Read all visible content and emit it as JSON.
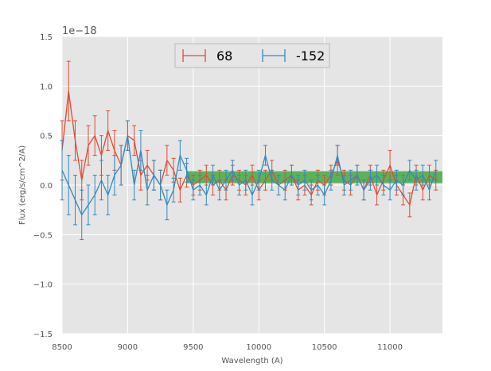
{
  "chart_data": {
    "type": "line",
    "xlabel": "Wavelength (A)",
    "ylabel": "Flux (erg/s/cm^2/A)",
    "offset_label": "1e−18",
    "xlim": [
      8500,
      11400
    ],
    "ylim": [
      -1.5,
      1.5
    ],
    "xticks": [
      8500,
      9000,
      9500,
      10000,
      10500,
      11000
    ],
    "xtick_labels": [
      "8500",
      "9000",
      "9500",
      "10000",
      "10500",
      "11000"
    ],
    "yticks": [
      -1.5,
      -1.0,
      -0.5,
      0.0,
      0.5,
      1.0,
      1.5
    ],
    "ytick_labels": [
      "−1.5",
      "−1.0",
      "−0.5",
      "0.0",
      "0.5",
      "1.0",
      "1.5"
    ],
    "grid": true,
    "background": "#e5e5e5",
    "legend_position": "top-center",
    "band": {
      "x": [
        9450,
        11400
      ],
      "y_low": 0.02,
      "y_high": 0.14,
      "color": "#2ca02c"
    },
    "series": [
      {
        "name": "68",
        "color": "#e24a33",
        "x": [
          8500,
          8550,
          8600,
          8650,
          8700,
          8750,
          8800,
          8850,
          8900,
          8950,
          9000,
          9050,
          9100,
          9150,
          9200,
          9250,
          9300,
          9350,
          9400,
          9450,
          9500,
          9550,
          9600,
          9650,
          9700,
          9750,
          9800,
          9850,
          9900,
          9950,
          10000,
          10050,
          10100,
          10150,
          10200,
          10250,
          10300,
          10350,
          10400,
          10450,
          10500,
          10550,
          10600,
          10650,
          10700,
          10750,
          10800,
          10850,
          10900,
          10950,
          11000,
          11050,
          11100,
          11150,
          11200,
          11250,
          11300,
          11350
        ],
        "y": [
          0.35,
          0.95,
          0.45,
          0.05,
          0.4,
          0.5,
          0.3,
          0.55,
          0.35,
          0.2,
          0.5,
          0.45,
          0.1,
          0.2,
          0.1,
          0.0,
          0.25,
          0.15,
          -0.05,
          0.1,
          0.0,
          0.05,
          0.1,
          0.0,
          0.05,
          -0.05,
          0.1,
          0.05,
          0.0,
          0.1,
          -0.05,
          0.05,
          0.15,
          0.0,
          0.05,
          0.1,
          -0.05,
          0.0,
          -0.1,
          0.05,
          0.0,
          0.1,
          0.25,
          0.05,
          0.0,
          0.1,
          -0.05,
          0.1,
          -0.1,
          0.05,
          0.2,
          0.0,
          -0.1,
          -0.2,
          0.1,
          -0.05,
          0.1,
          0.05
        ],
        "err": [
          0.3,
          0.3,
          0.2,
          0.2,
          0.2,
          0.2,
          0.2,
          0.2,
          0.2,
          0.2,
          0.15,
          0.15,
          0.15,
          0.15,
          0.15,
          0.15,
          0.15,
          0.12,
          0.12,
          0.12,
          0.1,
          0.1,
          0.1,
          0.1,
          0.1,
          0.1,
          0.1,
          0.1,
          0.1,
          0.1,
          0.1,
          0.1,
          0.1,
          0.1,
          0.1,
          0.1,
          0.1,
          0.1,
          0.1,
          0.1,
          0.1,
          0.1,
          0.15,
          0.1,
          0.1,
          0.1,
          0.1,
          0.1,
          0.1,
          0.1,
          0.15,
          0.1,
          0.1,
          0.12,
          0.1,
          0.1,
          0.1,
          0.1
        ]
      },
      {
        "name": "-152",
        "color": "#348abd",
        "x": [
          8500,
          8550,
          8600,
          8650,
          8700,
          8750,
          8800,
          8850,
          8900,
          8950,
          9000,
          9050,
          9100,
          9150,
          9200,
          9250,
          9300,
          9350,
          9400,
          9450,
          9500,
          9550,
          9600,
          9650,
          9700,
          9750,
          9800,
          9850,
          9900,
          9950,
          10000,
          10050,
          10100,
          10150,
          10200,
          10250,
          10300,
          10350,
          10400,
          10450,
          10500,
          10550,
          10600,
          10650,
          10700,
          10750,
          10800,
          10850,
          10900,
          10950,
          11000,
          11050,
          11100,
          11150,
          11200,
          11250,
          11300,
          11350
        ],
        "y": [
          0.15,
          0.0,
          -0.15,
          -0.3,
          -0.2,
          -0.1,
          0.05,
          -0.1,
          0.1,
          0.2,
          0.5,
          0.0,
          0.35,
          -0.05,
          0.1,
          0.0,
          -0.2,
          -0.05,
          0.3,
          0.15,
          -0.05,
          0.0,
          -0.1,
          0.1,
          -0.05,
          0.05,
          0.15,
          0.0,
          0.05,
          -0.1,
          0.05,
          0.3,
          0.05,
          0.0,
          -0.05,
          0.1,
          0.0,
          0.05,
          -0.05,
          0.0,
          -0.1,
          0.05,
          0.3,
          0.0,
          0.05,
          0.1,
          -0.05,
          0.05,
          0.1,
          0.0,
          -0.05,
          0.05,
          0.0,
          0.15,
          0.05,
          0.1,
          -0.05,
          0.15
        ],
        "err": [
          0.3,
          0.3,
          0.25,
          0.25,
          0.2,
          0.2,
          0.2,
          0.2,
          0.2,
          0.2,
          0.15,
          0.15,
          0.2,
          0.15,
          0.15,
          0.15,
          0.15,
          0.12,
          0.15,
          0.12,
          0.1,
          0.1,
          0.1,
          0.1,
          0.1,
          0.1,
          0.1,
          0.1,
          0.1,
          0.1,
          0.1,
          0.1,
          0.1,
          0.1,
          0.1,
          0.1,
          0.1,
          0.1,
          0.1,
          0.1,
          0.1,
          0.1,
          0.1,
          0.1,
          0.1,
          0.1,
          0.1,
          0.1,
          0.1,
          0.1,
          0.1,
          0.1,
          0.1,
          0.1,
          0.1,
          0.1,
          0.1,
          0.1
        ]
      }
    ]
  }
}
